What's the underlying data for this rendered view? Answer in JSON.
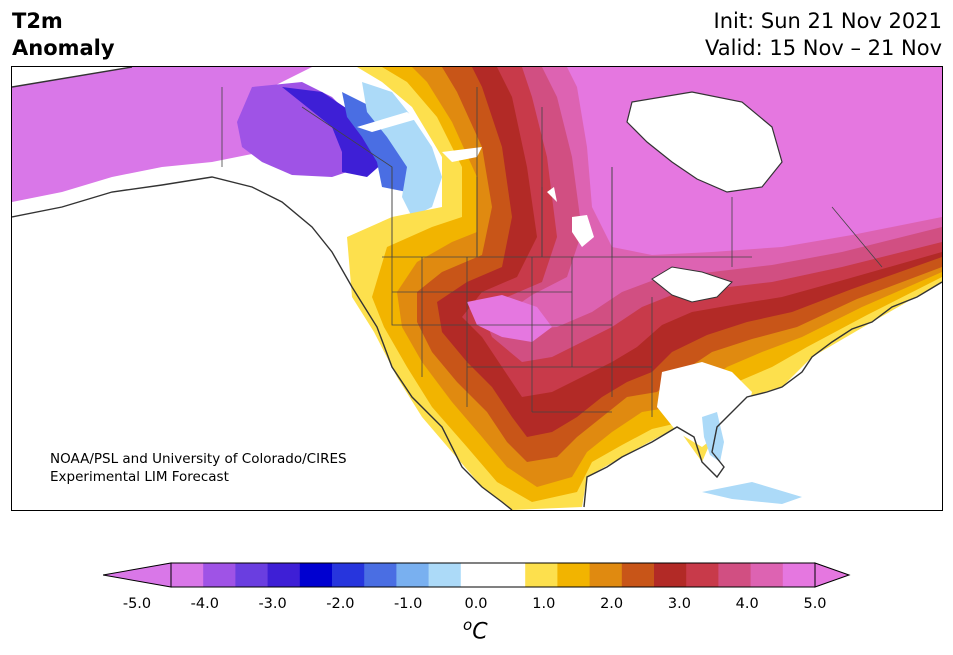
{
  "title": {
    "line1": "T2m",
    "line2": "Anomaly"
  },
  "dates": {
    "init": "Init: Sun 21 Nov 2021",
    "valid": "Valid: 15 Nov – 21 Nov"
  },
  "credit": {
    "line1": "NOAA/PSL and University of Colorado/CIRES",
    "line2": "Experimental LIM Forecast"
  },
  "colorbar": {
    "colors": [
      "#d977e8",
      "#9f53e6",
      "#6a3ee0",
      "#3e1fd6",
      "#0000d0",
      "#2735dd",
      "#4a6ee3",
      "#79b0f0",
      "#acdaf8",
      "#ffffff",
      "#ffffff",
      "#fde04d",
      "#f2b400",
      "#e08a10",
      "#c85518",
      "#b22a26",
      "#c83a4a",
      "#d14f82",
      "#dd63b2",
      "#e577e0"
    ],
    "ticks": [
      "-5.0",
      "-4.0",
      "-3.0",
      "-2.0",
      "-1.0",
      "0.0",
      "1.0",
      "2.0",
      "3.0",
      "4.0",
      "5.0"
    ],
    "unit_base": "C",
    "unit_sup": "o"
  },
  "palette": {
    "land_outline": "#333333",
    "ocean": "#ffffff"
  }
}
